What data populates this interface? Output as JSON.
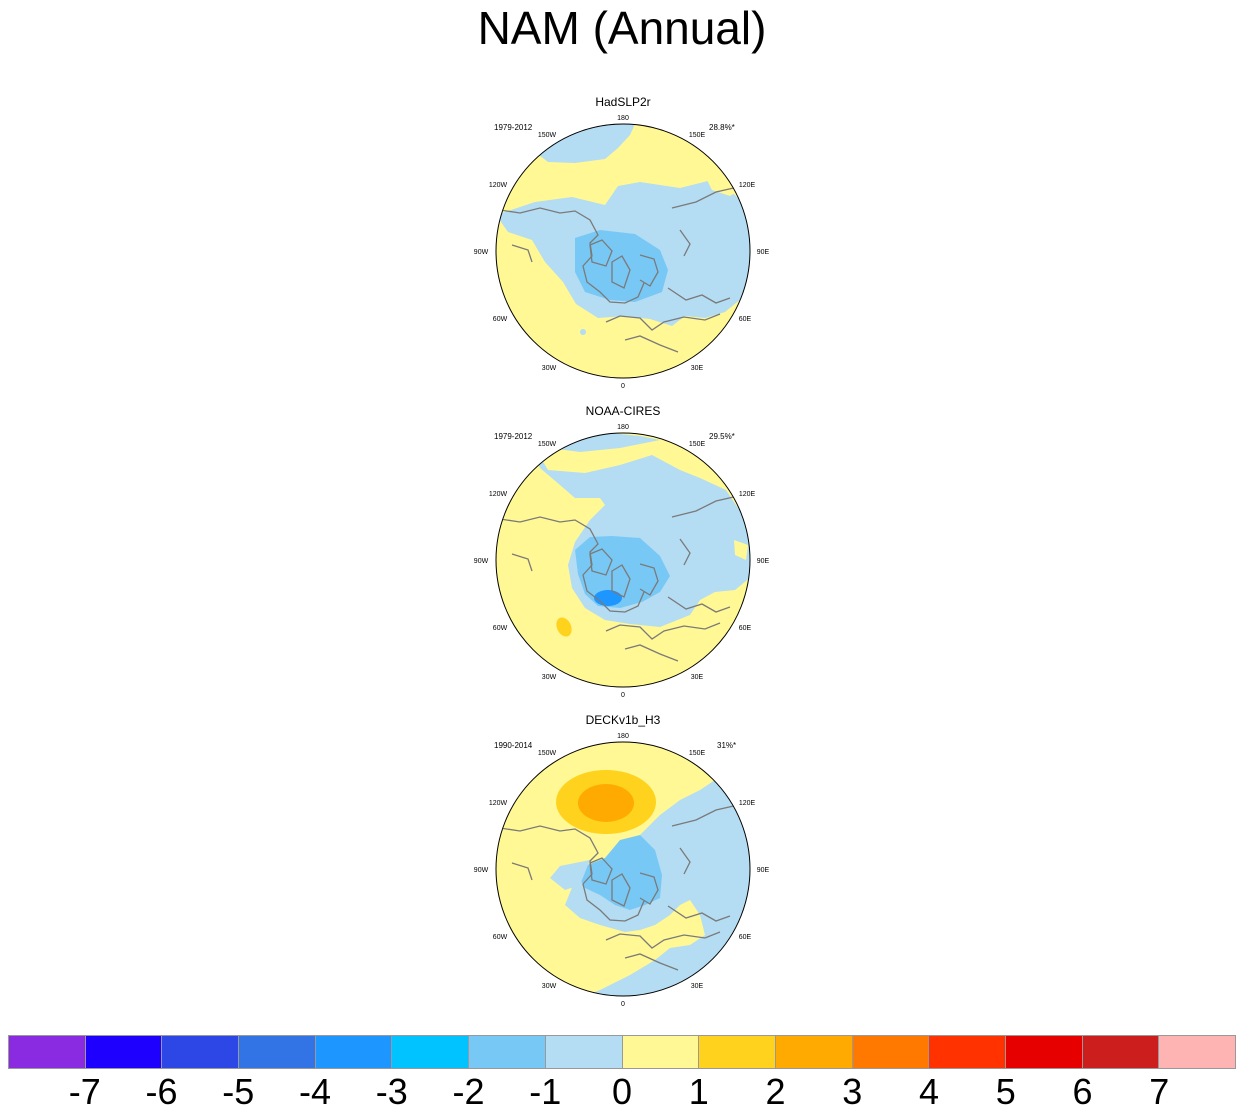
{
  "title": "NAM (Annual)",
  "chart_data": [
    {
      "type": "heatmap",
      "projection": "north-polar-stereographic",
      "title": "HadSLP2r",
      "period": "1979-2012",
      "variance_explained": "28.8%*",
      "longitude_labels": [
        "180",
        "150E",
        "120E",
        "90E",
        "60E",
        "30E",
        "0",
        "30W",
        "60W",
        "90W",
        "120W",
        "150W"
      ],
      "contour_summary": {
        "min_level": -2,
        "max_level": 1,
        "arctic_center_level": -2,
        "north_atlantic_level": 1,
        "north_pacific_level": 1
      }
    },
    {
      "type": "heatmap",
      "projection": "north-polar-stereographic",
      "title": "NOAA-CIRES",
      "period": "1979-2012",
      "variance_explained": "29.5%*",
      "longitude_labels": [
        "180",
        "150E",
        "120E",
        "90E",
        "60E",
        "30E",
        "0",
        "30W",
        "60W",
        "90W",
        "120W",
        "150W"
      ],
      "contour_summary": {
        "min_level": -3,
        "max_level": 2,
        "arctic_center_level": -3,
        "north_atlantic_level": 2,
        "north_pacific_level": 1
      }
    },
    {
      "type": "heatmap",
      "projection": "north-polar-stereographic",
      "title": "DECKv1b_H3",
      "period": "1990-2014",
      "variance_explained": "31%*",
      "longitude_labels": [
        "180",
        "150E",
        "120E",
        "90E",
        "60E",
        "30E",
        "0",
        "30W",
        "60W",
        "90W",
        "120W",
        "150W"
      ],
      "contour_summary": {
        "min_level": -2,
        "max_level": 3,
        "arctic_center_level": -2,
        "north_pacific_level": 3,
        "north_atlantic_level": 1
      }
    }
  ],
  "colorbar": {
    "labels": [
      "-7",
      "-6",
      "-5",
      "-4",
      "-3",
      "-2",
      "-1",
      "0",
      "1",
      "2",
      "3",
      "4",
      "5",
      "6",
      "7"
    ],
    "colors": [
      "#8a2be2",
      "#1e00ff",
      "#2d46e6",
      "#3273e6",
      "#1e96ff",
      "#00c3ff",
      "#78c8f5",
      "#b4dcf2",
      "#fff894",
      "#ffd21e",
      "#ffaa00",
      "#ff7800",
      "#ff3200",
      "#e60000",
      "#cd1e1e",
      "#ffb4b4"
    ]
  }
}
